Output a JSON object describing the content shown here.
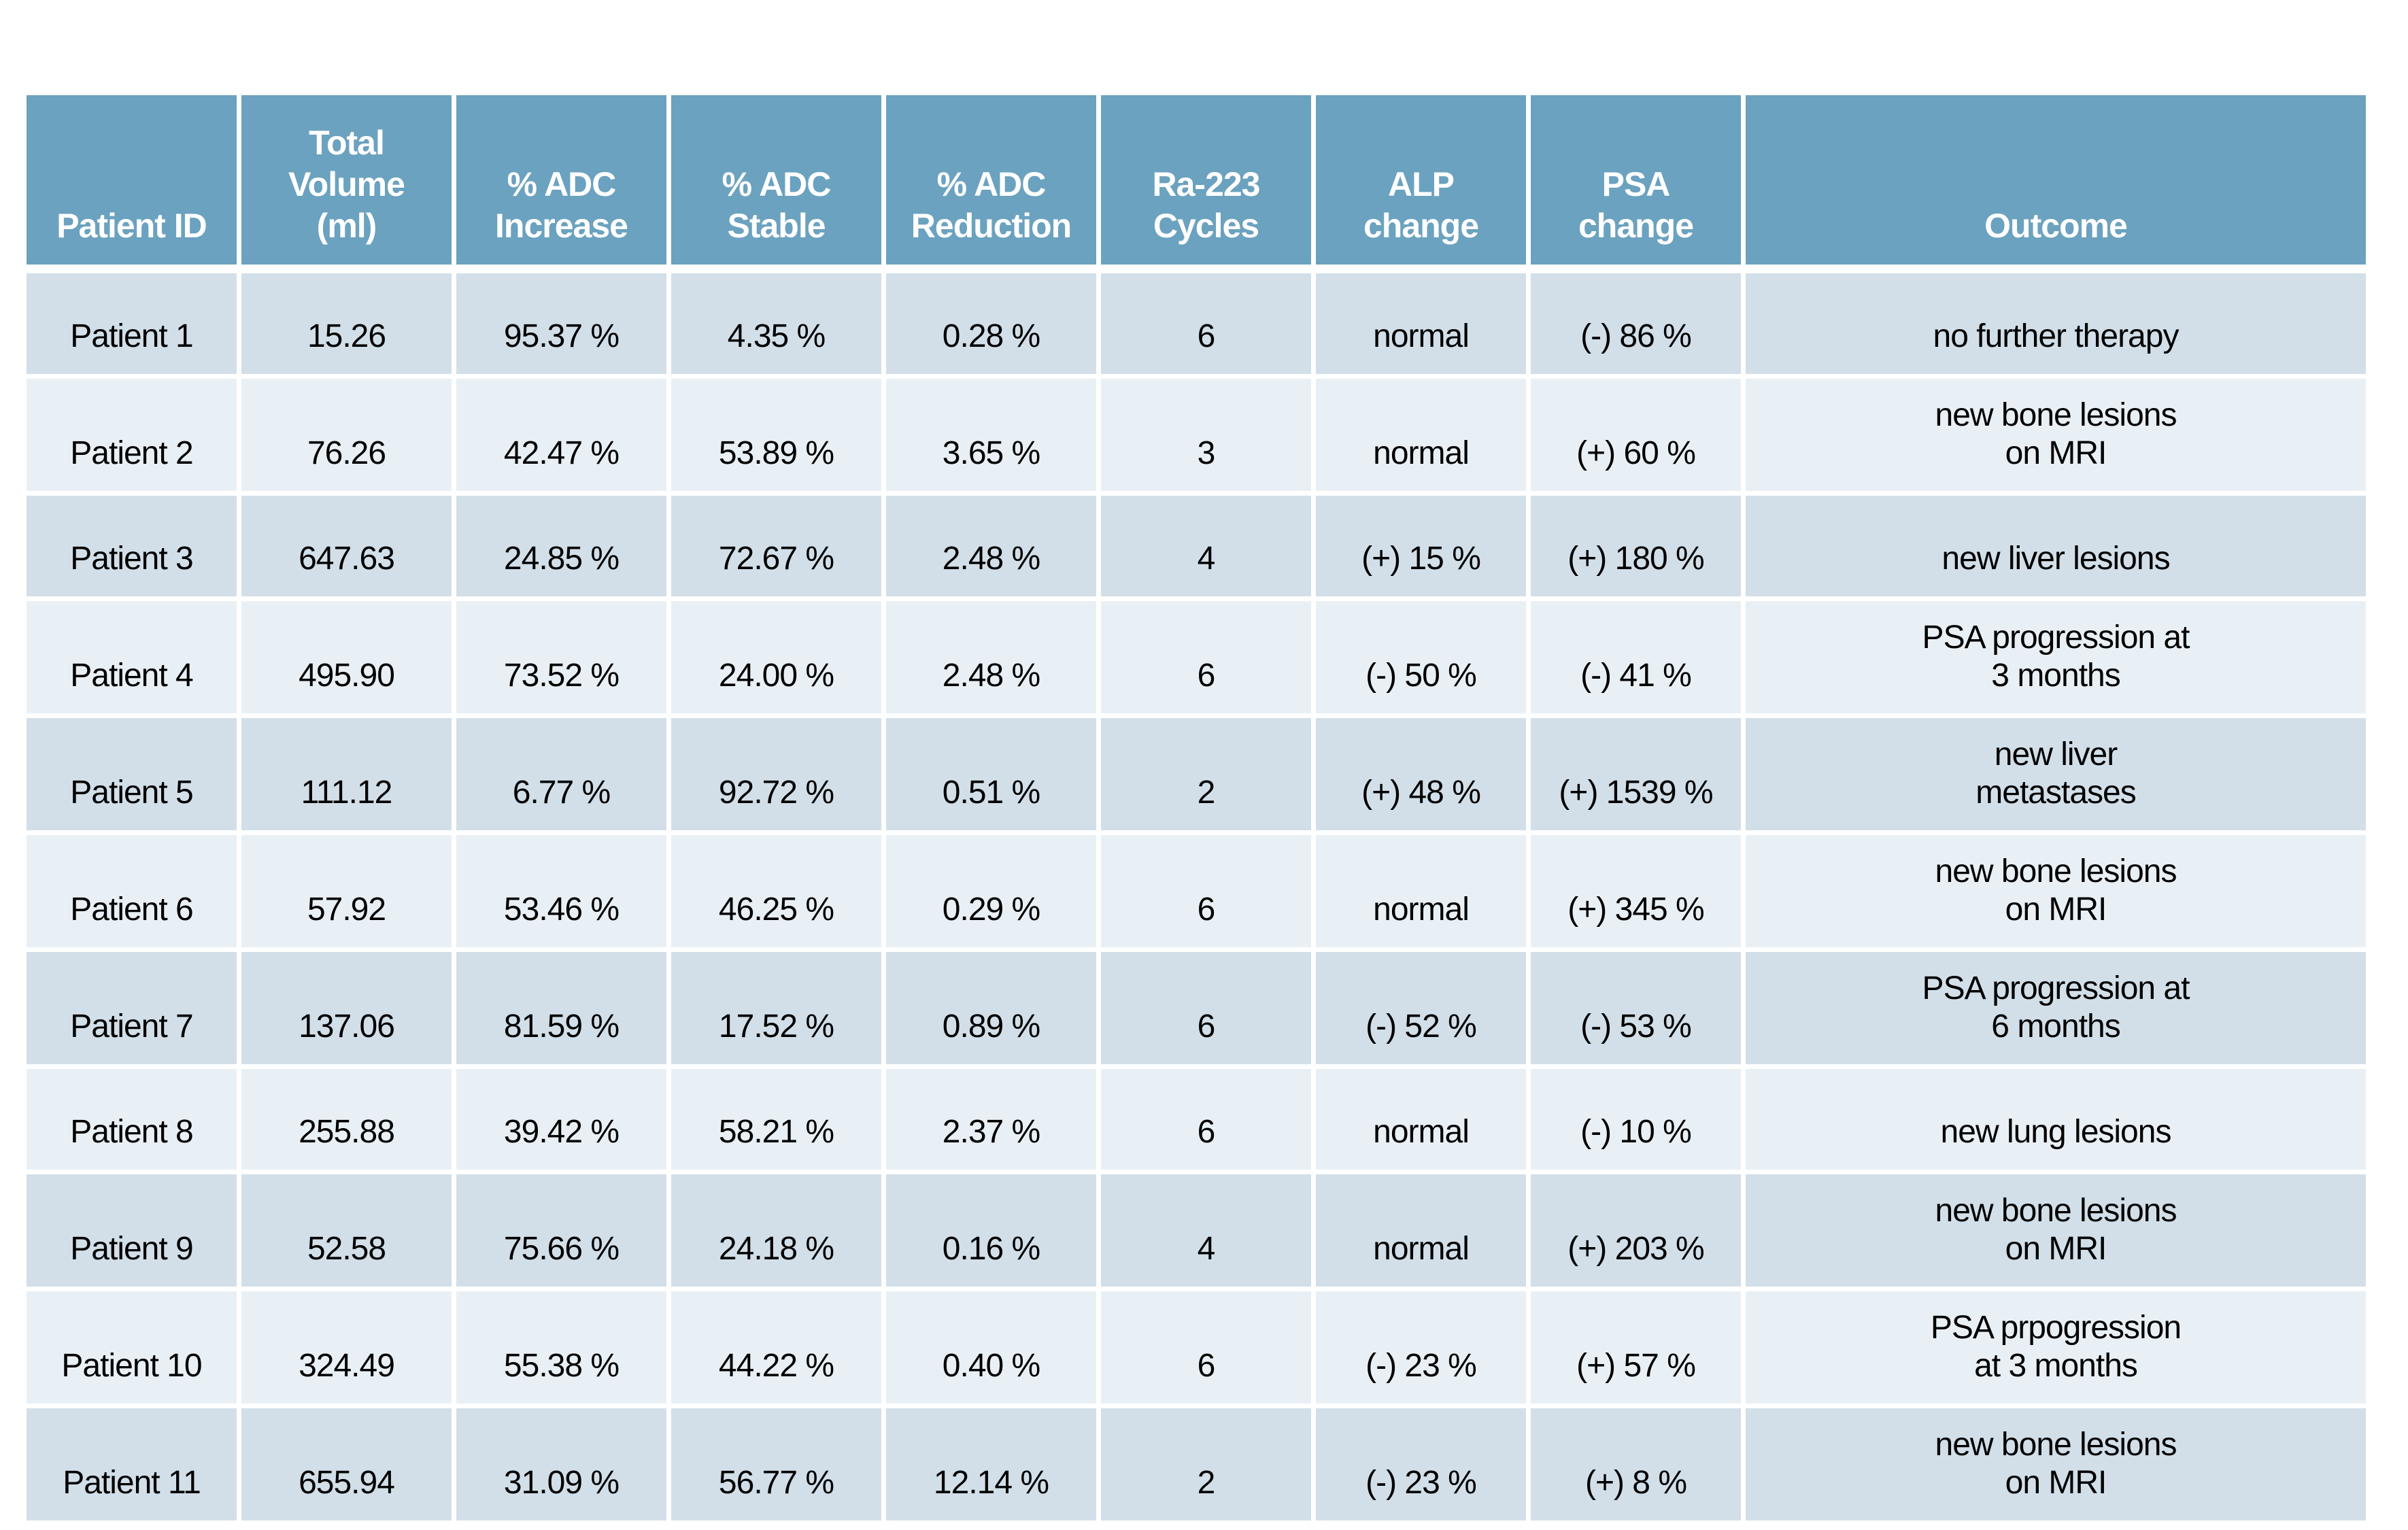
{
  "table": {
    "headers": [
      "Patient ID",
      "Total\nVolume\n(ml)",
      "% ADC\nIncrease",
      "% ADC\nStable",
      "% ADC\nReduction",
      "Ra-223\nCycles",
      "ALP\nchange",
      "PSA\nchange",
      "Outcome"
    ],
    "rows": [
      [
        "Patient 1",
        "15.26",
        "95.37 %",
        "4.35 %",
        "0.28 %",
        "6",
        "normal",
        "(-) 86 %",
        "no further therapy"
      ],
      [
        "Patient 2",
        "76.26",
        "42.47 %",
        "53.89 %",
        "3.65 %",
        "3",
        "normal",
        "(+) 60 %",
        "new bone lesions\non MRI"
      ],
      [
        "Patient 3",
        "647.63",
        "24.85 %",
        "72.67 %",
        "2.48 %",
        "4",
        "(+) 15 %",
        "(+) 180 %",
        "new liver lesions"
      ],
      [
        "Patient 4",
        "495.90",
        "73.52 %",
        "24.00 %",
        "2.48 %",
        "6",
        "(-) 50 %",
        "(-) 41 %",
        "PSA progression at\n3 months"
      ],
      [
        "Patient 5",
        "111.12",
        "6.77 %",
        "92.72 %",
        "0.51 %",
        "2",
        "(+) 48 %",
        "(+) 1539 %",
        "new liver\nmetastases"
      ],
      [
        "Patient 6",
        "57.92",
        "53.46 %",
        "46.25 %",
        "0.29 %",
        "6",
        "normal",
        "(+) 345 %",
        "new bone lesions\non MRI"
      ],
      [
        "Patient 7",
        "137.06",
        "81.59 %",
        "17.52 %",
        "0.89 %",
        "6",
        "(-) 52 %",
        "(-) 53 %",
        "PSA progression at\n6 months"
      ],
      [
        "Patient 8",
        "255.88",
        "39.42 %",
        "58.21 %",
        "2.37 %",
        "6",
        "normal",
        "(-) 10 %",
        "new lung lesions"
      ],
      [
        "Patient 9",
        "52.58",
        "75.66 %",
        "24.18 %",
        "0.16 %",
        "4",
        "normal",
        "(+) 203 %",
        "new bone lesions\non MRI"
      ],
      [
        "Patient 10",
        "324.49",
        "55.38 %",
        "44.22 %",
        "0.40 %",
        "6",
        "(-) 23 %",
        "(+) 57 %",
        "PSA prpogression\nat 3 months"
      ],
      [
        "Patient 11",
        "655.94",
        "31.09 %",
        "56.77 %",
        "12.14 %",
        "2",
        "(-) 23 %",
        "(+) 8 %",
        "new bone lesions\non MRI"
      ]
    ]
  },
  "colors": {
    "header_bg": "#6ba2bf",
    "row_dark": "#d2dfe9",
    "row_light": "#e9f0f5",
    "grid_line": "#ffffff",
    "header_text": "#ffffff",
    "body_text": "#000000",
    "page_bg": "#ffffff"
  }
}
